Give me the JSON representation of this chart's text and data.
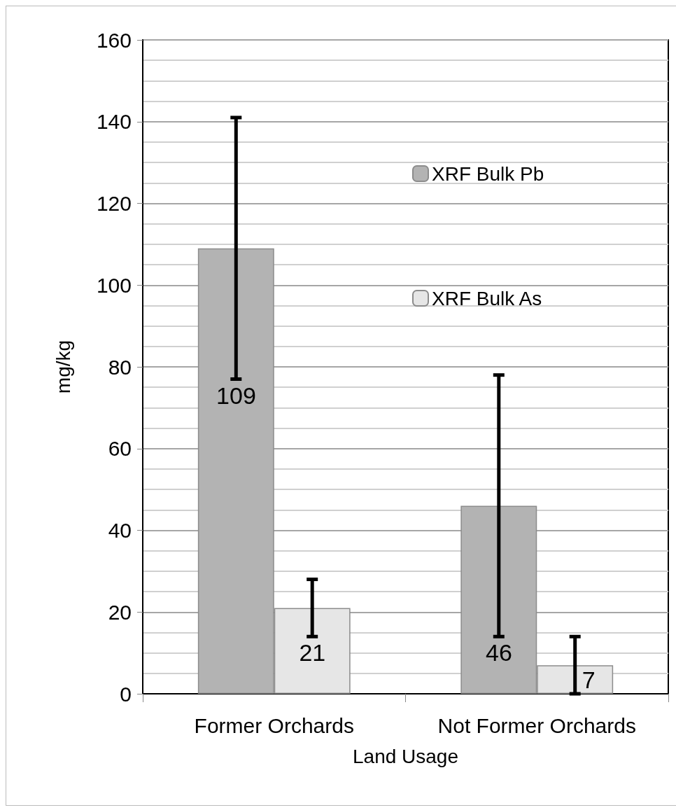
{
  "chart_data": {
    "type": "bar",
    "xlabel": "Land Usage",
    "ylabel": "mg/kg",
    "categories": [
      "Former Orchards",
      "Not Former Orchards"
    ],
    "series": [
      {
        "name": "XRF Bulk Pb",
        "color": "#b3b3b3",
        "values": [
          109,
          46
        ],
        "errors": [
          32,
          32
        ]
      },
      {
        "name": "XRF Bulk As",
        "color": "#e6e6e6",
        "values": [
          21,
          7
        ],
        "errors": [
          7,
          7
        ]
      }
    ],
    "ylim": [
      0,
      160
    ],
    "yticks": [
      0,
      20,
      40,
      60,
      80,
      100,
      120,
      140,
      160
    ],
    "grid": "y",
    "legend": "top right",
    "data_labels": true
  }
}
